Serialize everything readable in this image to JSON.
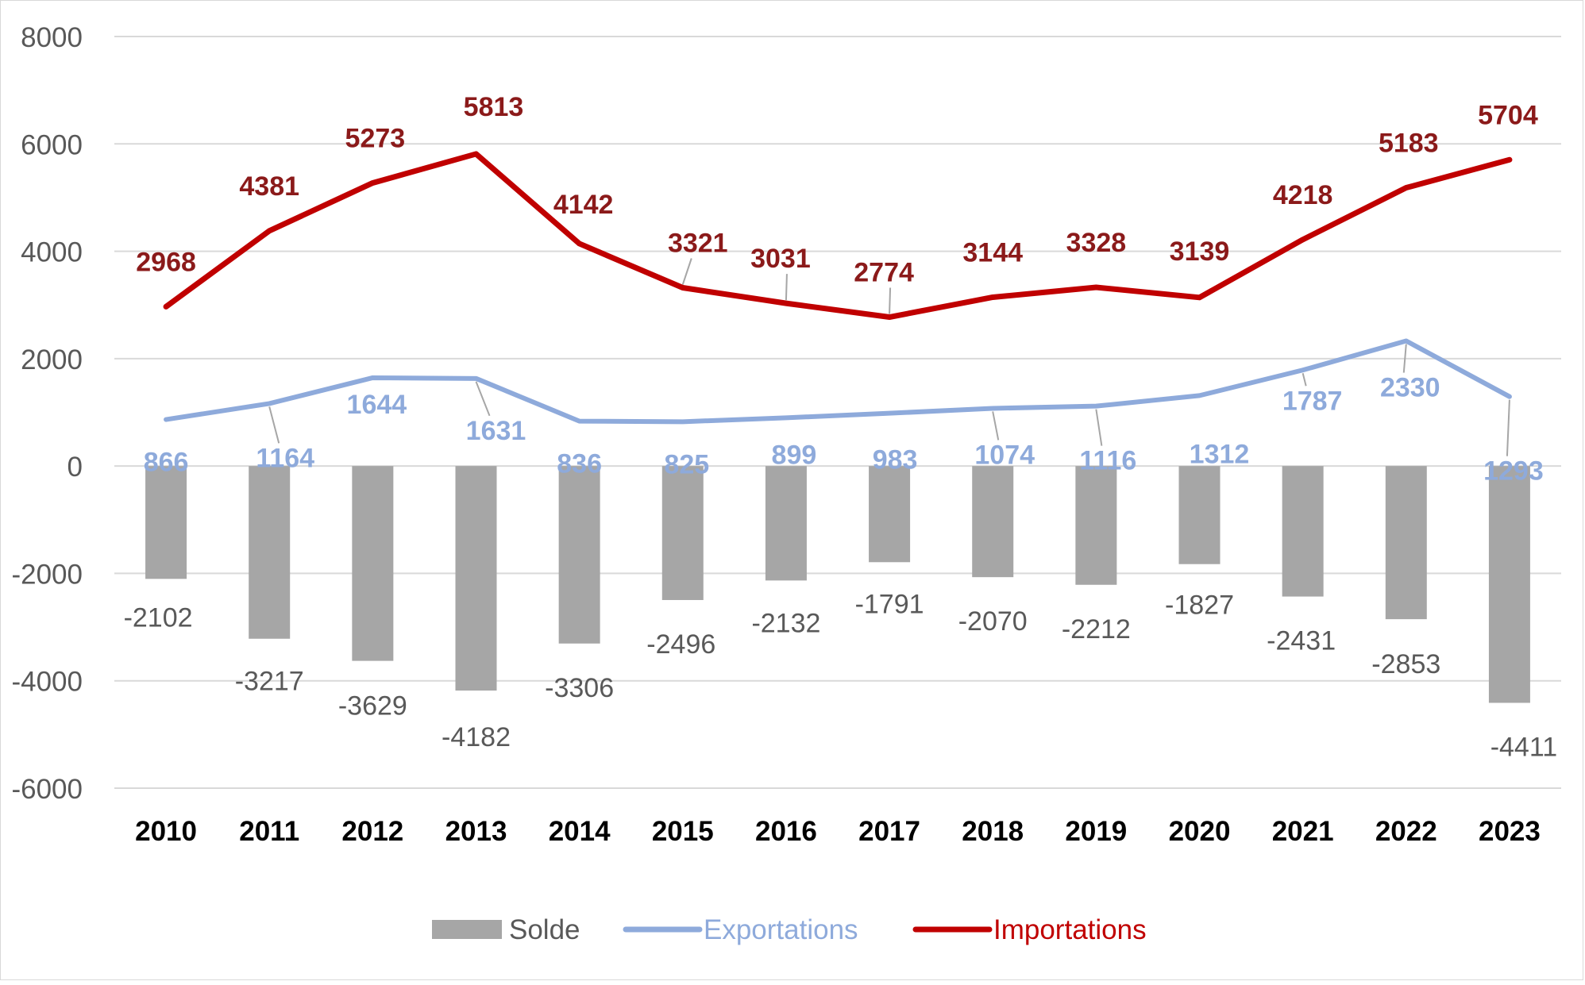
{
  "chart_data": {
    "type": "bar+line",
    "categories": [
      "2010",
      "2011",
      "2012",
      "2013",
      "2014",
      "2015",
      "2016",
      "2017",
      "2018",
      "2019",
      "2020",
      "2021",
      "2022",
      "2023"
    ],
    "series": [
      {
        "name": "Solde",
        "type": "bar",
        "color": "#a6a6a6",
        "label_color": "#595959",
        "values": [
          -2102,
          -3217,
          -3629,
          -4182,
          -3306,
          -2496,
          -2132,
          -1791,
          -2070,
          -2212,
          -1827,
          -2431,
          -2853,
          -4411
        ]
      },
      {
        "name": "Exportations",
        "type": "line",
        "color": "#8eaadb",
        "label_color": "#8eaadb",
        "values": [
          866,
          1164,
          1644,
          1631,
          836,
          825,
          899,
          983,
          1074,
          1116,
          1312,
          1787,
          2330,
          1293
        ]
      },
      {
        "name": "Importations",
        "type": "line",
        "color": "#c00000",
        "label_color": "#8b1a1a",
        "values": [
          2968,
          4381,
          5273,
          5813,
          4142,
          3321,
          3031,
          2774,
          3144,
          3328,
          3139,
          4218,
          5183,
          5704
        ]
      }
    ],
    "y_ticks": [
      "8000",
      "6000",
      "4000",
      "2000",
      "0",
      "-2000",
      "-4000",
      "-6000"
    ],
    "ylim": [
      -6000,
      8000
    ],
    "grid": true,
    "legend_position": "bottom",
    "title": "",
    "xlabel": "",
    "ylabel": ""
  }
}
